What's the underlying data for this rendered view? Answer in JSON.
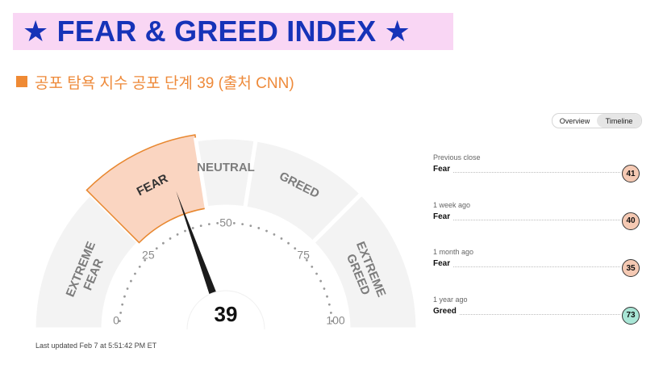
{
  "header": {
    "title": "★ FEAR & GREED INDEX ★",
    "subtitle": "공포 탐욕 지수 공포 단계 39 (출처 CNN)"
  },
  "gauge": {
    "value": 39,
    "value_label": "39",
    "segments": [
      "EXTREME FEAR",
      "FEAR",
      "NEUTRAL",
      "GREED",
      "EXTREME GREED"
    ],
    "active_segment": "FEAR",
    "ticks": [
      "0",
      "25",
      "50",
      "75",
      "100"
    ]
  },
  "view_toggle": {
    "options": [
      "Overview",
      "Timeline"
    ],
    "selected": "Timeline"
  },
  "history": [
    {
      "period": "Previous close",
      "label": "Fear",
      "value": "41",
      "color": "#f5c9b3"
    },
    {
      "period": "1 week ago",
      "label": "Fear",
      "value": "40",
      "color": "#f5c9b3"
    },
    {
      "period": "1 month ago",
      "label": "Fear",
      "value": "35",
      "color": "#f5c9b3"
    },
    {
      "period": "1 year ago",
      "label": "Greed",
      "value": "73",
      "color": "#a9e6d6"
    }
  ],
  "last_updated": "Last updated Feb 7 at 5:51:42 PM ET",
  "colors": {
    "banner_bg": "#f9d6f4",
    "title": "#1633b8",
    "subtitle": "#ee8a3a",
    "fear_highlight": "#fad5c1",
    "fear_border": "#e8872f",
    "needle": "#1b1b1b"
  }
}
